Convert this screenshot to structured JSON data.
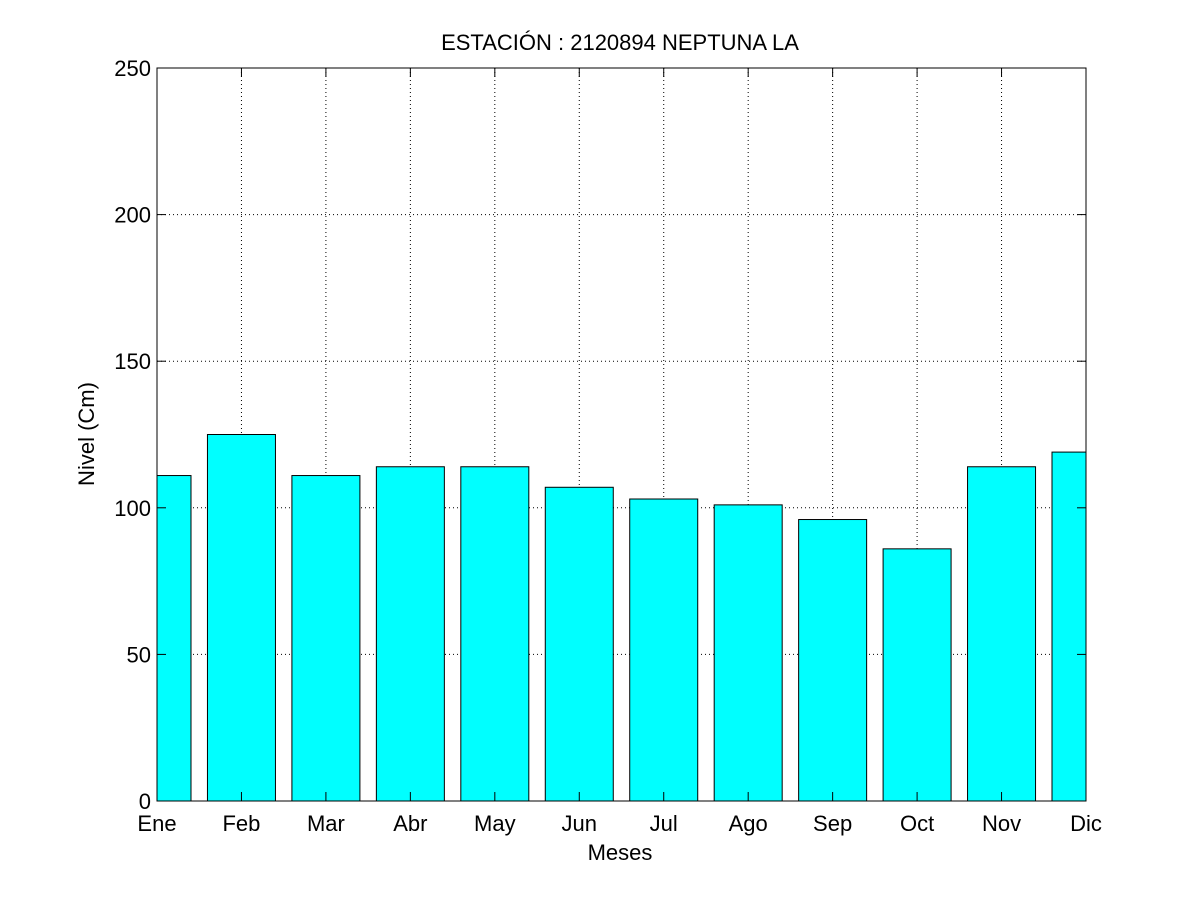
{
  "chart_data": {
    "type": "bar",
    "title": "ESTACIÓN :  2120894  NEPTUNA LA",
    "xlabel": "Meses",
    "ylabel": "Nivel (Cm)",
    "categories": [
      "Ene",
      "Feb",
      "Mar",
      "Abr",
      "May",
      "Jun",
      "Jul",
      "Ago",
      "Sep",
      "Oct",
      "Nov",
      "Dic"
    ],
    "values": [
      111,
      125,
      111,
      114,
      114,
      107,
      103,
      101,
      96,
      86,
      114,
      119
    ],
    "ylim": [
      0,
      250
    ],
    "yticks": [
      0,
      50,
      100,
      150,
      200,
      250
    ],
    "grid": true,
    "bar_color": "#00ffff",
    "edge_color": "#000000"
  }
}
